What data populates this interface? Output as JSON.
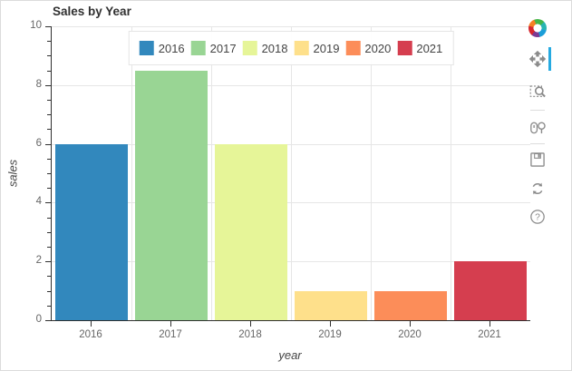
{
  "figure": {
    "title": "Sales by Year"
  },
  "chart_data": {
    "type": "bar",
    "title": "Sales by Year",
    "categories": [
      "2016",
      "2017",
      "2018",
      "2019",
      "2020",
      "2021"
    ],
    "values": [
      6,
      8.5,
      6,
      1,
      1,
      2
    ],
    "bar_colors": [
      "#3288bd",
      "#99d594",
      "#e6f598",
      "#fee08b",
      "#fc8d59",
      "#d53e4f"
    ],
    "xlabel": "year",
    "ylabel": "sales",
    "ylim": [
      0,
      10
    ],
    "yticks": [
      0,
      2,
      4,
      6,
      8,
      10
    ],
    "y_minor_tick_step": 0.5,
    "grid": true,
    "legend_position": "top-center",
    "legend_labels": [
      "2016",
      "2017",
      "2018",
      "2019",
      "2020",
      "2021"
    ]
  },
  "toolbar": {
    "active_tool": "pan",
    "active_highlight_color": "#26aae1",
    "tools": [
      {
        "name": "bokeh-logo",
        "icon": "bokeh-logo-icon",
        "active": false
      },
      {
        "name": "pan",
        "icon": "move-icon",
        "active": true
      },
      {
        "name": "box-zoom",
        "icon": "box-zoom-icon",
        "active": false
      },
      {
        "name": "wheel-zoom",
        "icon": "wheel-zoom-icon",
        "active": false
      },
      {
        "name": "save",
        "icon": "save-icon",
        "active": false
      },
      {
        "name": "reset",
        "icon": "reset-icon",
        "active": false
      },
      {
        "name": "help",
        "icon": "help-icon",
        "active": false
      }
    ]
  },
  "colors": {
    "title": "#303030",
    "axis_line": "#303030",
    "tick_label": "#666666",
    "axis_label": "#444444",
    "gridline": "#e6e6e6",
    "legend_border": "#e5e5e5",
    "toolbar_icon": "#8b8b8b"
  }
}
